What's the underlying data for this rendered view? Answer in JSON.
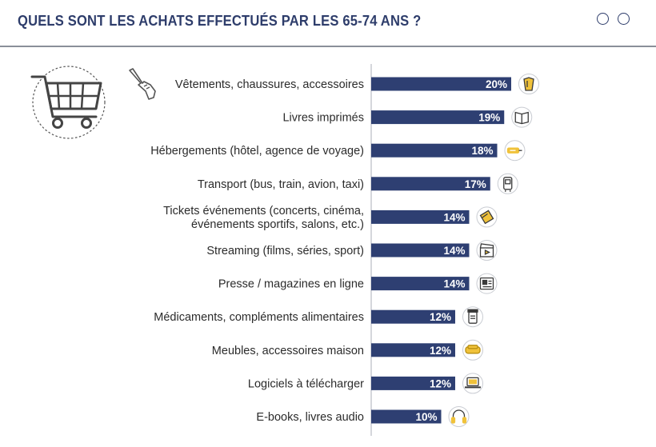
{
  "header": {
    "title": "QUELS SONT LES ACHATS EFFECTUÉS PAR LES 65-74 ANS ?"
  },
  "colors": {
    "bar": "#2e3f72",
    "title": "#2e3d6b",
    "icon_accent": "#f0c23a",
    "axis": "#b9bcc4"
  },
  "icons": {
    "cart": "shopping-cart-icon",
    "pointer": "pointing-hand-icon"
  },
  "chart_data": {
    "type": "bar",
    "orientation": "horizontal",
    "title": "QUELS SONT LES ACHATS EFFECTUÉS PAR LES 65-74 ANS ?",
    "unit": "%",
    "xlim": [
      0,
      25
    ],
    "categories": [
      [
        "Vêtements, chaussures, accessoires"
      ],
      [
        "Livres imprimés"
      ],
      [
        "Hébergements (hôtel, agence de voyage)"
      ],
      [
        "Transport (bus, train, avion, taxi)"
      ],
      [
        "Tickets événements (concerts, cinéma,",
        "événements sportifs, salons, etc.)"
      ],
      [
        "Streaming (films, séries, sport)"
      ],
      [
        "Presse / magazines en ligne"
      ],
      [
        "Médicaments, compléments alimentaires"
      ],
      [
        "Meubles, accessoires maison"
      ],
      [
        "Logiciels à télécharger"
      ],
      [
        "E-books, livres audio"
      ]
    ],
    "values": [
      20,
      19,
      18,
      17,
      14,
      14,
      14,
      12,
      12,
      12,
      10
    ],
    "value_labels": [
      "20%",
      "19%",
      "18%",
      "17%",
      "14%",
      "14%",
      "14%",
      "12%",
      "12%",
      "12%",
      "10%"
    ],
    "category_icons": [
      "clothing-icon",
      "book-icon",
      "key-card-icon",
      "bus-icon",
      "tickets-icon",
      "clapperboard-icon",
      "newspaper-icon",
      "pill-bottle-icon",
      "sofa-icon",
      "laptop-icon",
      "headphones-icon"
    ]
  }
}
